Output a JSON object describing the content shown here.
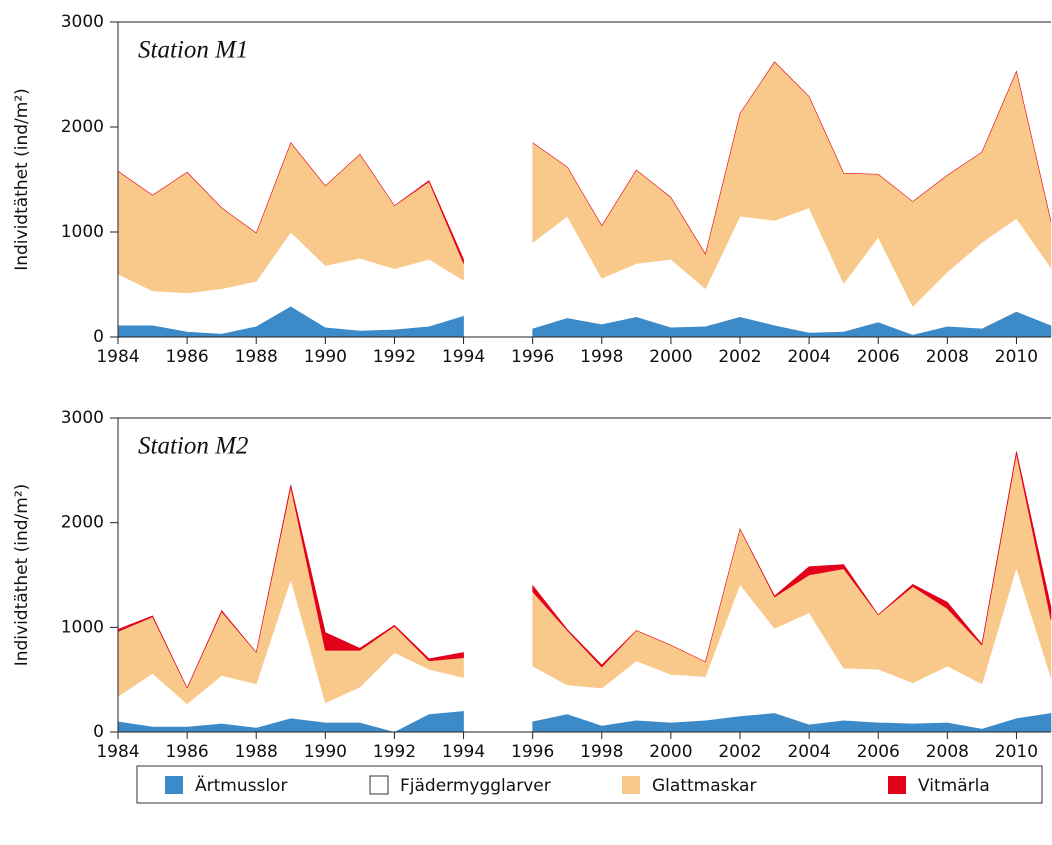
{
  "chart_data": [
    {
      "type": "stacked-area",
      "annotation": "Station M1",
      "y_label": "Individtäthet (ind/m²)",
      "x": [
        1984,
        1985,
        1986,
        1987,
        1988,
        1989,
        1990,
        1991,
        1992,
        1993,
        1994,
        1995,
        1996,
        1997,
        1998,
        1999,
        2000,
        2001,
        2002,
        2003,
        2004,
        2005,
        2006,
        2007,
        2008,
        2009,
        2010,
        2011
      ],
      "xlim": [
        1984,
        2011
      ],
      "xticks": [
        1984,
        1986,
        1988,
        1990,
        1992,
        1994,
        1996,
        1998,
        2000,
        2002,
        2004,
        2006,
        2008,
        2010
      ],
      "ylim": [
        0,
        3000
      ],
      "yticks": [
        0,
        1000,
        2000,
        3000
      ],
      "series": [
        {
          "name": "Ärtmusslor",
          "color": "#3d8ac8",
          "values": [
            110,
            110,
            50,
            30,
            100,
            290,
            90,
            60,
            70,
            100,
            200,
            null,
            80,
            180,
            120,
            190,
            90,
            100,
            190,
            110,
            40,
            50,
            140,
            20,
            100,
            80,
            240,
            110
          ]
        },
        {
          "name": "Fjädermygglarver",
          "color": "#ffffff",
          "values": [
            490,
            330,
            370,
            430,
            430,
            710,
            590,
            690,
            580,
            640,
            340,
            null,
            820,
            970,
            440,
            510,
            650,
            360,
            960,
            1000,
            1190,
            460,
            810,
            270,
            520,
            820,
            890,
            550
          ]
        },
        {
          "name": "Glattmaskar",
          "color": "#f9c98b",
          "values": [
            980,
            910,
            1150,
            770,
            460,
            850,
            760,
            990,
            600,
            740,
            160,
            null,
            950,
            470,
            500,
            890,
            590,
            330,
            980,
            1510,
            1060,
            1050,
            600,
            1000,
            920,
            860,
            1400,
            440
          ]
        },
        {
          "name": "Vitmärla",
          "color": "#e3001b",
          "values": [
            0,
            0,
            0,
            0,
            0,
            0,
            0,
            0,
            0,
            10,
            40,
            null,
            0,
            0,
            0,
            0,
            0,
            0,
            0,
            0,
            0,
            0,
            0,
            0,
            0,
            0,
            0,
            0
          ]
        }
      ]
    },
    {
      "type": "stacked-area",
      "annotation": "Station M2",
      "y_label": "Individtäthet (ind/m²)",
      "x": [
        1984,
        1985,
        1986,
        1987,
        1988,
        1989,
        1990,
        1991,
        1992,
        1993,
        1994,
        1995,
        1996,
        1997,
        1998,
        1999,
        2000,
        2001,
        2002,
        2003,
        2004,
        2005,
        2006,
        2007,
        2008,
        2009,
        2010,
        2011
      ],
      "xlim": [
        1984,
        2011
      ],
      "xticks": [
        1984,
        1986,
        1988,
        1990,
        1992,
        1994,
        1996,
        1998,
        2000,
        2002,
        2004,
        2006,
        2008,
        2010
      ],
      "ylim": [
        0,
        3000
      ],
      "yticks": [
        0,
        1000,
        2000,
        3000
      ],
      "series": [
        {
          "name": "Ärtmusslor",
          "color": "#3d8ac8",
          "values": [
            100,
            50,
            50,
            80,
            40,
            130,
            90,
            90,
            0,
            170,
            200,
            null,
            100,
            170,
            60,
            110,
            90,
            110,
            150,
            180,
            70,
            110,
            90,
            80,
            90,
            30,
            130,
            180
          ]
        },
        {
          "name": "Fjädermygglarver",
          "color": "#ffffff",
          "values": [
            240,
            510,
            220,
            460,
            420,
            1330,
            190,
            340,
            760,
            430,
            320,
            null,
            530,
            280,
            360,
            570,
            460,
            420,
            1260,
            810,
            1070,
            500,
            510,
            390,
            540,
            430,
            1440,
            340
          ]
        },
        {
          "name": "Glattmaskar",
          "color": "#f9c98b",
          "values": [
            620,
            540,
            150,
            610,
            300,
            880,
            500,
            350,
            250,
            80,
            190,
            null,
            710,
            520,
            200,
            290,
            280,
            140,
            530,
            300,
            360,
            950,
            520,
            920,
            550,
            370,
            1090,
            550
          ]
        },
        {
          "name": "Vitmärla",
          "color": "#e3001b",
          "values": [
            20,
            10,
            0,
            10,
            0,
            20,
            170,
            20,
            10,
            20,
            50,
            null,
            60,
            10,
            20,
            0,
            0,
            0,
            0,
            10,
            80,
            40,
            0,
            20,
            60,
            10,
            20,
            120
          ]
        }
      ]
    }
  ]
}
